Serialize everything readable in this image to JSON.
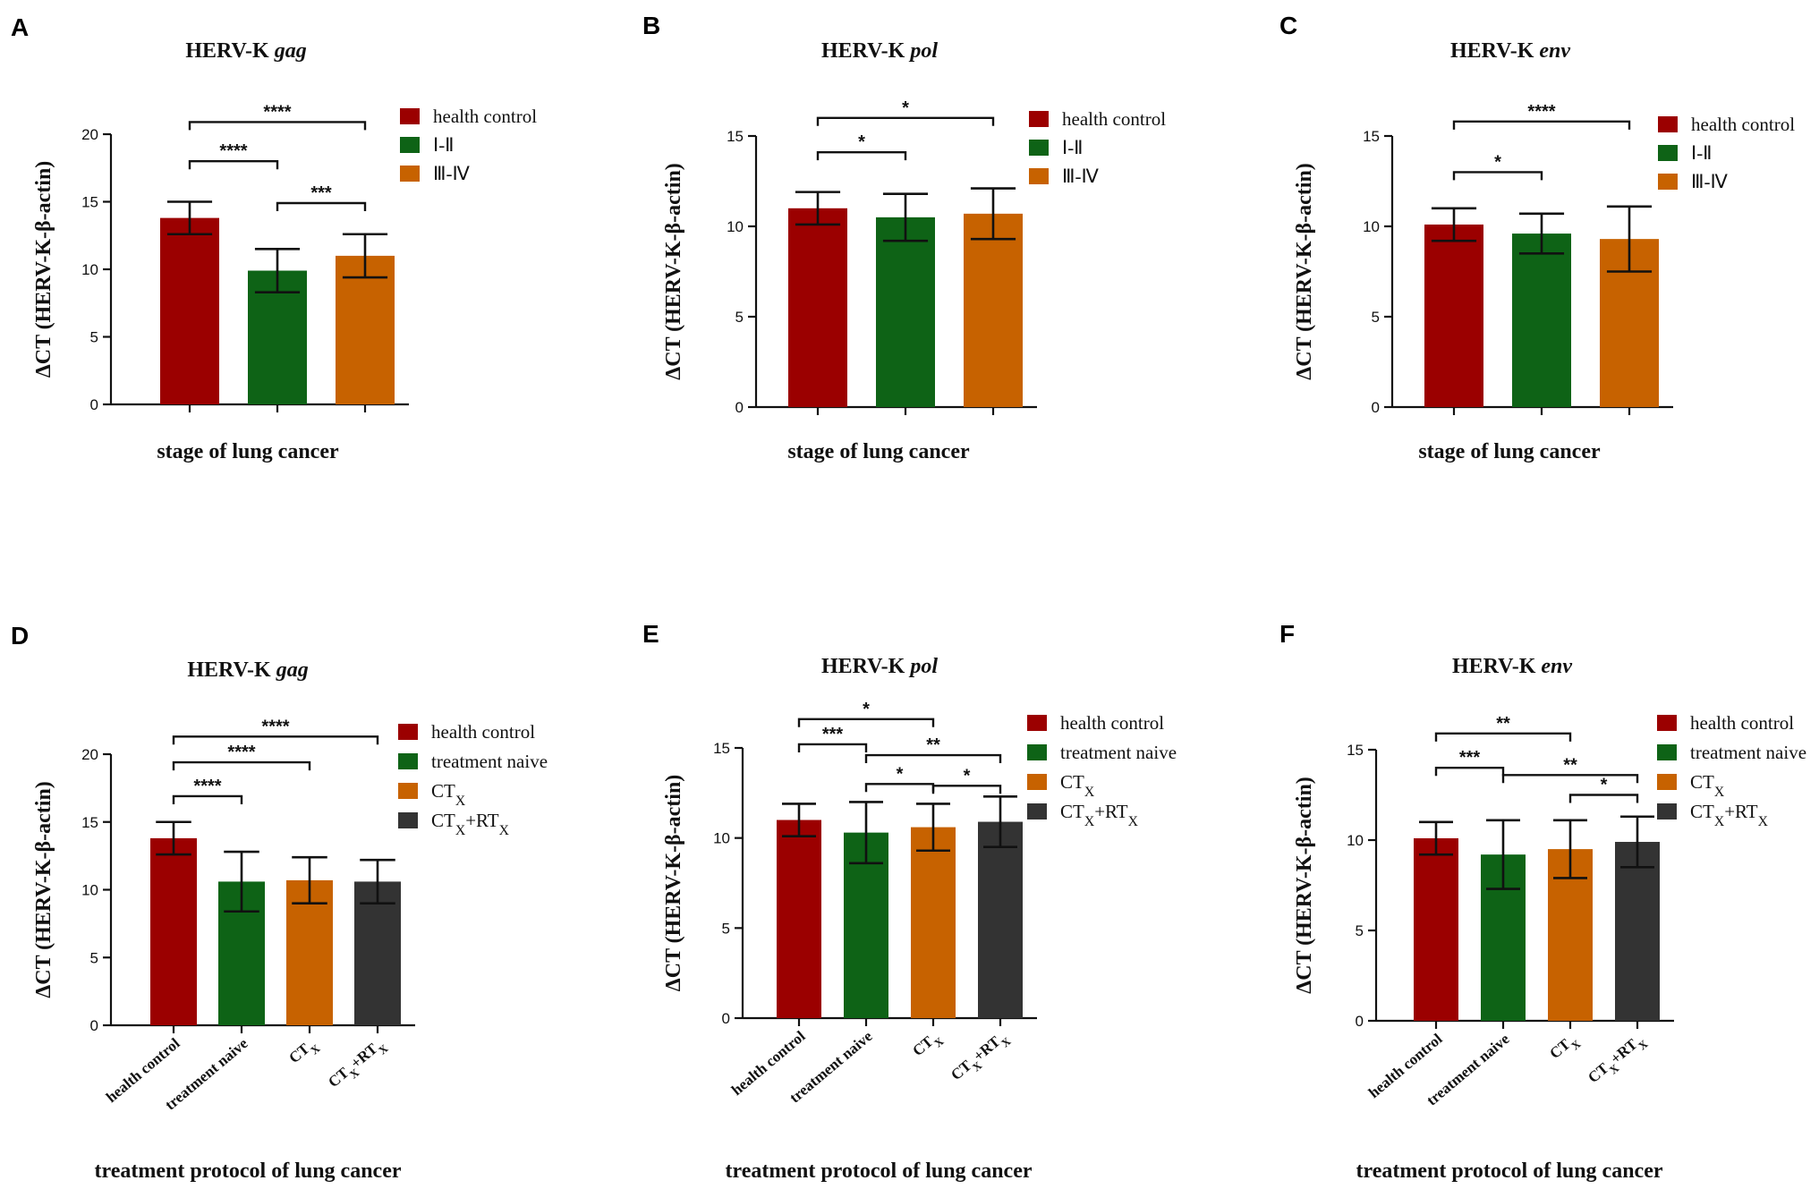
{
  "colors": {
    "health_control": "#9b0000",
    "stage_I_II": "#0e6316",
    "stage_III_IV": "#c76200",
    "ctx_rtx": "#333333"
  },
  "chart_data": [
    {
      "panel": "A",
      "type": "bar",
      "title": "HERV-K",
      "title_gene": "gag",
      "ylabel": "ΔCT (HERV-K-β-actin)",
      "xlabel": "stage of lung cancer",
      "ylim": [
        0,
        20
      ],
      "yticks": [
        0,
        5,
        10,
        15,
        20
      ],
      "categories": [
        "health control",
        "Ⅰ-Ⅱ",
        "Ⅲ-Ⅳ"
      ],
      "legend": [
        "health control",
        "Ⅰ-Ⅱ",
        "Ⅲ-Ⅳ"
      ],
      "show_category_labels": false,
      "values": [
        13.8,
        9.9,
        11.0
      ],
      "errors": [
        1.2,
        1.6,
        1.6
      ],
      "colors": [
        "#9b0000",
        "#0e6316",
        "#c76200"
      ],
      "significance": [
        {
          "from": 0,
          "to": 2,
          "stars": "****",
          "level": 20.9
        },
        {
          "from": 0,
          "to": 1,
          "stars": "****",
          "level": 18.0
        },
        {
          "from": 1,
          "to": 2,
          "stars": "***",
          "level": 14.9
        }
      ]
    },
    {
      "panel": "B",
      "type": "bar",
      "title": "HERV-K",
      "title_gene": "pol",
      "ylabel": "ΔCT (HERV-K-β-actin)",
      "xlabel": "stage of lung cancer",
      "ylim": [
        0,
        15
      ],
      "yticks": [
        0,
        5,
        10,
        15
      ],
      "categories": [
        "health control",
        "Ⅰ-Ⅱ",
        "Ⅲ-Ⅳ"
      ],
      "legend": [
        "health control",
        "Ⅰ-Ⅱ",
        "Ⅲ-Ⅳ"
      ],
      "show_category_labels": false,
      "values": [
        11.0,
        10.5,
        10.7
      ],
      "errors": [
        0.9,
        1.3,
        1.4
      ],
      "colors": [
        "#9b0000",
        "#0e6316",
        "#c76200"
      ],
      "significance": [
        {
          "from": 0,
          "to": 2,
          "stars": "*",
          "level": 16.0
        },
        {
          "from": 0,
          "to": 1,
          "stars": "*",
          "level": 14.1
        }
      ]
    },
    {
      "panel": "C",
      "type": "bar",
      "title": "HERV-K",
      "title_gene": "env",
      "ylabel": "ΔCT (HERV-K-β-actin)",
      "xlabel": "stage of lung cancer",
      "ylim": [
        0,
        15
      ],
      "yticks": [
        0,
        5,
        10,
        15
      ],
      "categories": [
        "health control",
        "Ⅰ-Ⅱ",
        "Ⅲ-Ⅳ"
      ],
      "legend": [
        "health control",
        "Ⅰ-Ⅱ",
        "Ⅲ-Ⅳ"
      ],
      "show_category_labels": false,
      "values": [
        10.1,
        9.6,
        9.3
      ],
      "errors": [
        0.9,
        1.1,
        1.8
      ],
      "colors": [
        "#9b0000",
        "#0e6316",
        "#c76200"
      ],
      "significance": [
        {
          "from": 0,
          "to": 2,
          "stars": "****",
          "level": 15.8
        },
        {
          "from": 0,
          "to": 1,
          "stars": "*",
          "level": 13.0
        }
      ]
    },
    {
      "panel": "D",
      "type": "bar",
      "title": "HERV-K",
      "title_gene": "gag",
      "ylabel": "ΔCT (HERV-K-β-actin)",
      "xlabel": "treatment protocol of lung cancer",
      "ylim": [
        0,
        20
      ],
      "yticks": [
        0,
        5,
        10,
        15,
        20
      ],
      "categories": [
        "health control",
        "treatment naive",
        "CTX",
        "CTX+RTX"
      ],
      "legend": [
        "health control",
        "treatment naive",
        "CTX",
        "CTX+RTX"
      ],
      "show_category_labels": true,
      "values": [
        13.8,
        10.6,
        10.7,
        10.6
      ],
      "errors": [
        1.2,
        2.2,
        1.7,
        1.6
      ],
      "colors": [
        "#9b0000",
        "#0e6316",
        "#c76200",
        "#333333"
      ],
      "significance": [
        {
          "from": 0,
          "to": 3,
          "stars": "****",
          "level": 21.3
        },
        {
          "from": 0,
          "to": 2,
          "stars": "****",
          "level": 19.4
        },
        {
          "from": 0,
          "to": 1,
          "stars": "****",
          "level": 16.9
        }
      ]
    },
    {
      "panel": "E",
      "type": "bar",
      "title": "HERV-K",
      "title_gene": "pol",
      "ylabel": "ΔCT (HERV-K-β-actin)",
      "xlabel": "treatment protocol of lung cancer",
      "ylim": [
        0,
        15
      ],
      "yticks": [
        0,
        5,
        10,
        15
      ],
      "categories": [
        "health control",
        "treatment naive",
        "CTX",
        "CTX+RTX"
      ],
      "legend": [
        "health control",
        "treatment naive",
        "CTX",
        "CTX+RTX"
      ],
      "show_category_labels": true,
      "values": [
        11.0,
        10.3,
        10.6,
        10.9
      ],
      "errors": [
        0.9,
        1.7,
        1.3,
        1.4
      ],
      "colors": [
        "#9b0000",
        "#0e6316",
        "#c76200",
        "#333333"
      ],
      "significance": [
        {
          "from": 0,
          "to": 2,
          "stars": "*",
          "level": 16.6
        },
        {
          "from": 0,
          "to": 1,
          "stars": "***",
          "level": 15.2
        },
        {
          "from": 1,
          "to": 3,
          "stars": "**",
          "level": 14.6
        },
        {
          "from": 1,
          "to": 2,
          "stars": "*",
          "level": 13.0
        },
        {
          "from": 2,
          "to": 3,
          "stars": "*",
          "level": 12.9
        }
      ]
    },
    {
      "panel": "F",
      "type": "bar",
      "title": "HERV-K",
      "title_gene": "env",
      "ylabel": "ΔCT (HERV-K-β-actin)",
      "xlabel": "treatment protocol of lung cancer",
      "ylim": [
        0,
        15
      ],
      "yticks": [
        0,
        5,
        10,
        15
      ],
      "categories": [
        "health control",
        "treatment naive",
        "CTX",
        "CTX+RTX"
      ],
      "legend": [
        "health control",
        "treatment naive",
        "CTX",
        "CTX+RTX"
      ],
      "show_category_labels": true,
      "values": [
        10.1,
        9.2,
        9.5,
        9.9
      ],
      "errors": [
        0.9,
        1.9,
        1.6,
        1.4
      ],
      "colors": [
        "#9b0000",
        "#0e6316",
        "#c76200",
        "#333333"
      ],
      "significance": [
        {
          "from": 0,
          "to": 2,
          "stars": "**",
          "level": 15.9
        },
        {
          "from": 0,
          "to": 1,
          "stars": "***",
          "level": 14.0
        },
        {
          "from": 1,
          "to": 3,
          "stars": "**",
          "level": 13.6
        },
        {
          "from": 2,
          "to": 3,
          "stars": "*",
          "level": 12.5
        }
      ]
    }
  ]
}
